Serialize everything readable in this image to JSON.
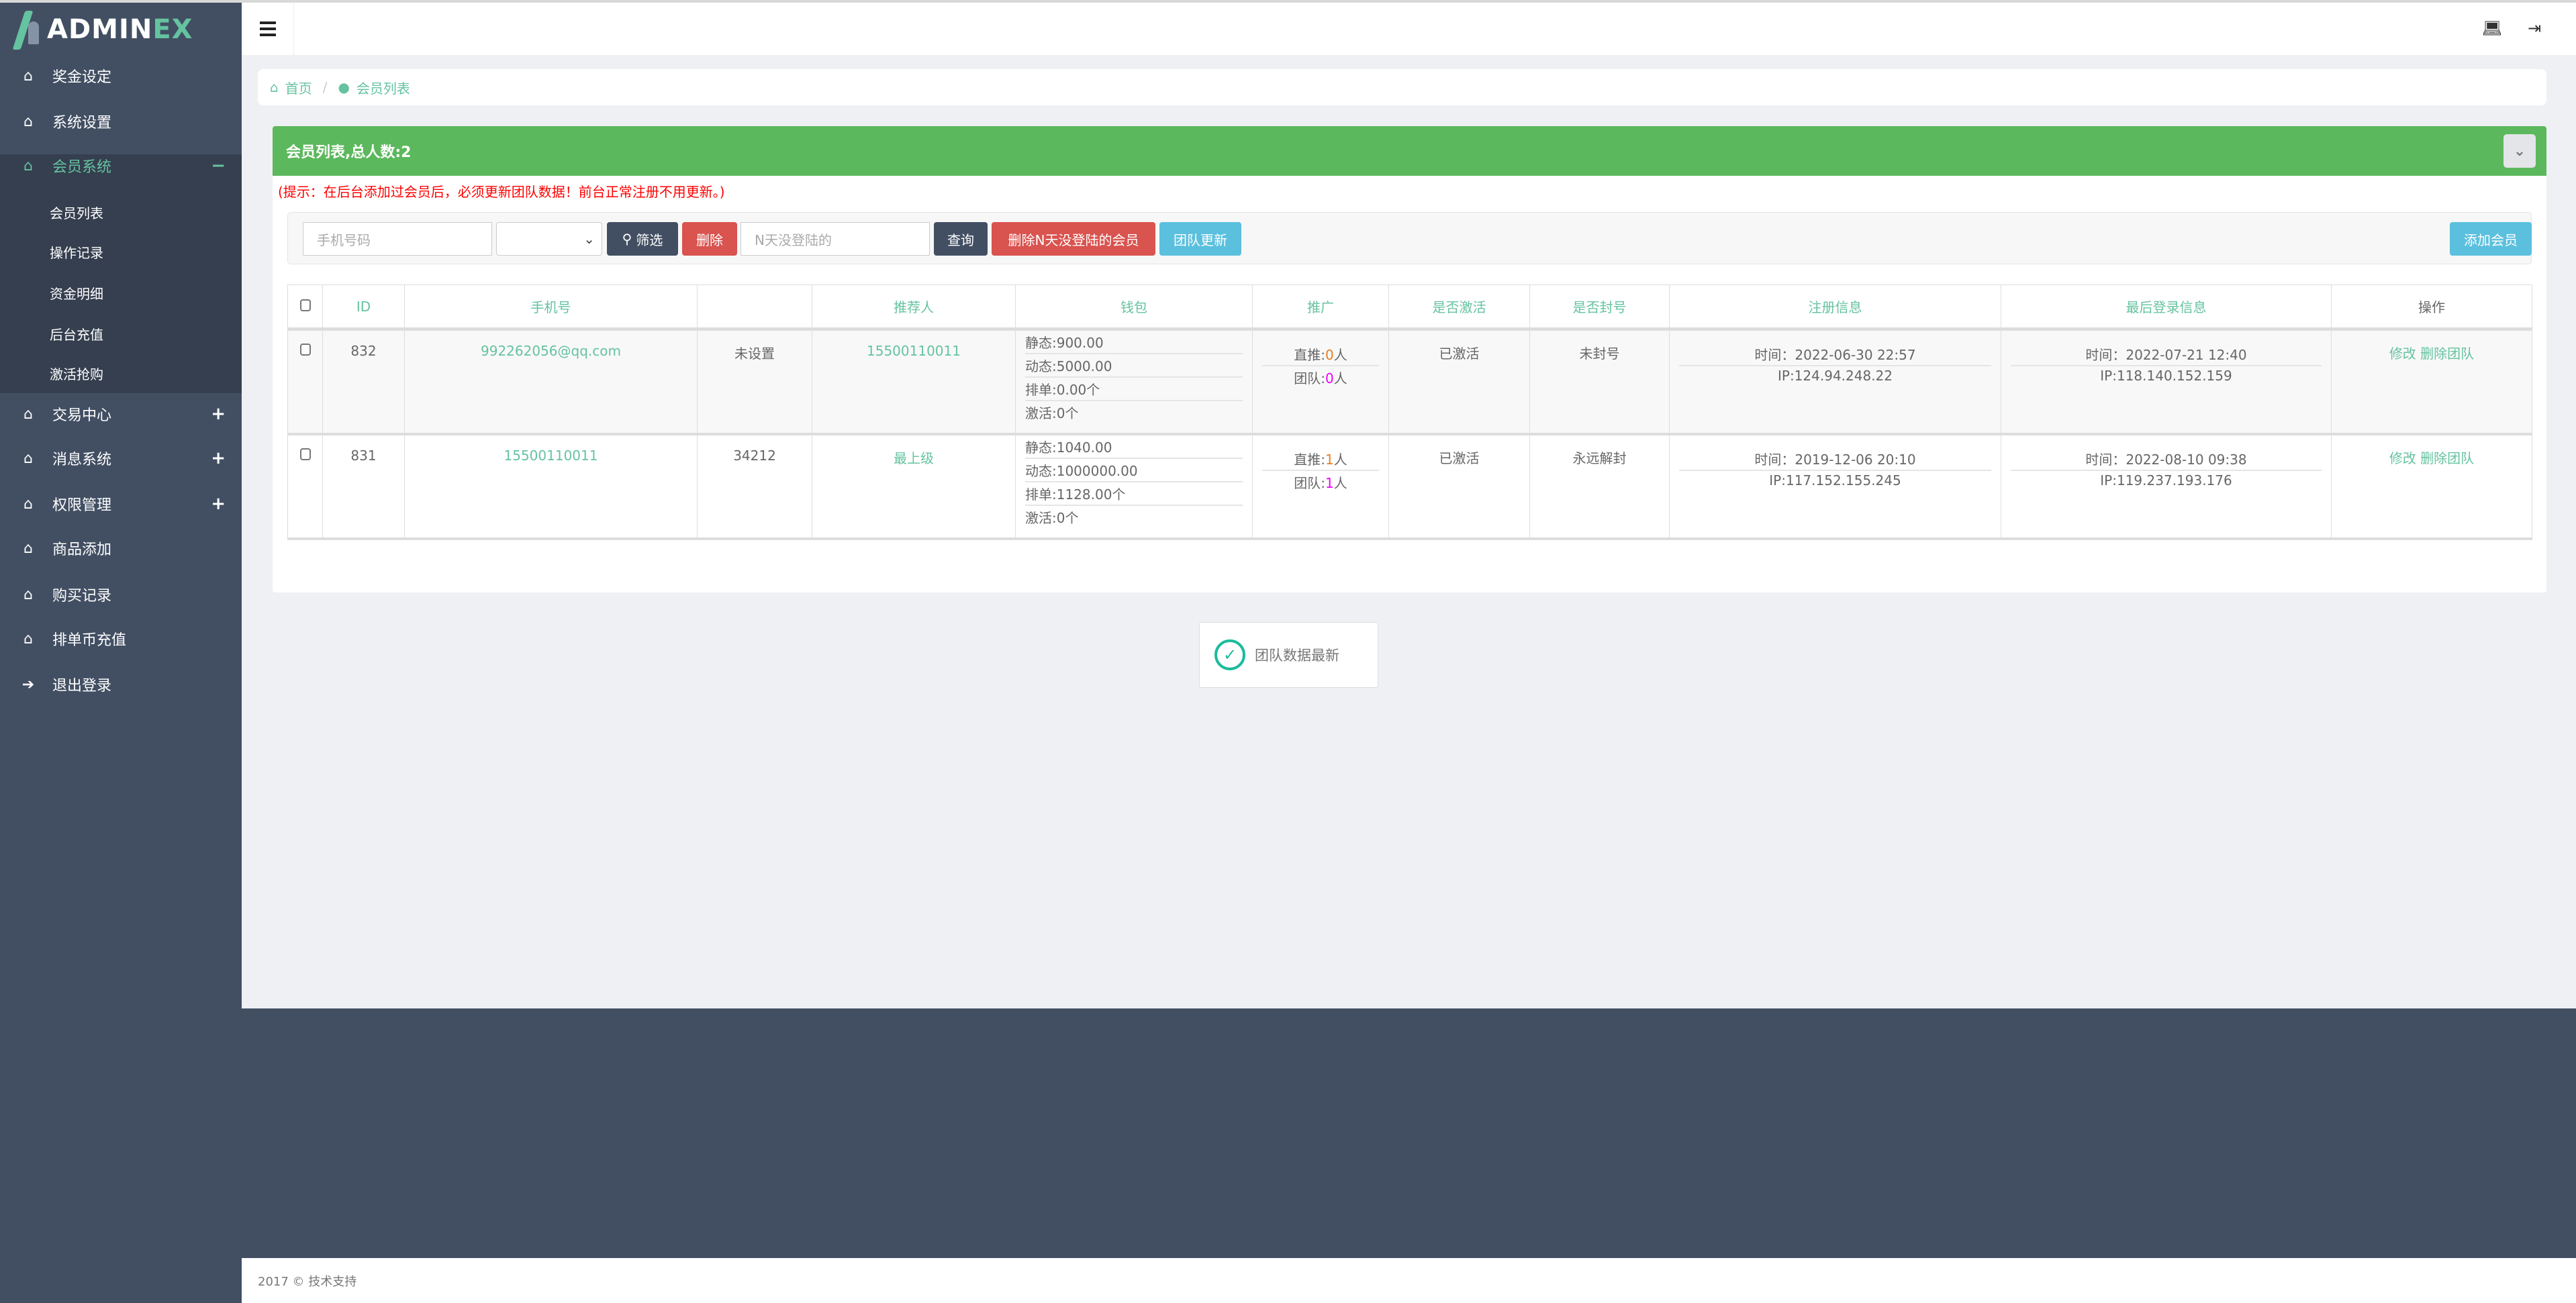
{
  "brand": {
    "part1": "ADMIN",
    "part2": "EX"
  },
  "sidebar": {
    "items": [
      {
        "label": "奖金设定",
        "icon": "home-icon"
      },
      {
        "label": "系统设置",
        "icon": "home-icon"
      },
      {
        "label": "会员系统",
        "icon": "home-icon",
        "toggle": "−",
        "active": true
      },
      {
        "label": "交易中心",
        "icon": "home-icon",
        "toggle": "+"
      },
      {
        "label": "消息系统",
        "icon": "home-icon",
        "toggle": "+"
      },
      {
        "label": "权限管理",
        "icon": "home-icon",
        "toggle": "+"
      },
      {
        "label": "商品添加",
        "icon": "home-icon"
      },
      {
        "label": "购买记录",
        "icon": "home-icon"
      },
      {
        "label": "排单币充值",
        "icon": "home-icon"
      },
      {
        "label": "退出登录",
        "icon": "sign-in-icon"
      }
    ],
    "subitems": [
      "会员列表",
      "操作记录",
      "资金明细",
      "后台充值",
      "激活抢购"
    ]
  },
  "breadcrumb": {
    "home": "首页",
    "current": "会员列表"
  },
  "panel": {
    "title": "会员列表,总人数:2",
    "hint": "(提示：在后台添加过会员后，必须更新团队数据！前台正常注册不用更新。)",
    "phone_placeholder": "手机号码",
    "filter_label": "筛选",
    "delete_label": "删除",
    "days_placeholder": "N天没登陆的",
    "query_label": "查询",
    "delete_inactive_label": "删除N天没登陆的会员",
    "team_update_label": "团队更新",
    "add_member_label": "添加会员"
  },
  "table": {
    "headers": [
      "ID",
      "手机号",
      "",
      "推荐人",
      "钱包",
      "推广",
      "是否激活",
      "是否封号",
      "注册信息",
      "最后登录信息",
      "操作"
    ],
    "rows": [
      {
        "id": "832",
        "phone": "992262056@qq.com",
        "extra": "未设置",
        "referrer": "15500110011",
        "wallet": [
          "静态:900.00",
          "动态:5000.00",
          "排单:0.00个",
          "激活:0个"
        ],
        "direct_label": "直推:",
        "direct": "0",
        "direct_unit": "人",
        "team_label": "团队:",
        "team": "0",
        "team_unit": "人",
        "activated": "已激活",
        "banned": "未封号",
        "reg_time": "时间：2022-06-30 22:57",
        "reg_ip": "IP:124.94.248.22",
        "login_time": "时间：2022-07-21 12:40",
        "login_ip": "IP:118.140.152.159",
        "edit": "修改",
        "del_team": "删除团队"
      },
      {
        "id": "831",
        "phone": "15500110011",
        "extra": "34212",
        "referrer": "最上级",
        "wallet": [
          "静态:1040.00",
          "动态:1000000.00",
          "排单:1128.00个",
          "激活:0个"
        ],
        "direct_label": "直推:",
        "direct": "1",
        "direct_unit": "人",
        "team_label": "团队:",
        "team": "1",
        "team_unit": "人",
        "activated": "已激活",
        "banned": "永远解封",
        "reg_time": "时间：2019-12-06 20:10",
        "reg_ip": "IP:117.152.155.245",
        "login_time": "时间：2022-08-10 09:38",
        "login_ip": "IP:119.237.193.176",
        "edit": "修改",
        "del_team": "删除团队"
      }
    ]
  },
  "toast": {
    "message": "团队数据最新"
  },
  "footer": {
    "text": "2017 © 技术支持"
  },
  "colors": {
    "sidebar": "#424f63",
    "accent": "#65c3a0",
    "panel_header": "#5cb85c",
    "danger": "#d9534f",
    "info": "#5bc0de"
  }
}
